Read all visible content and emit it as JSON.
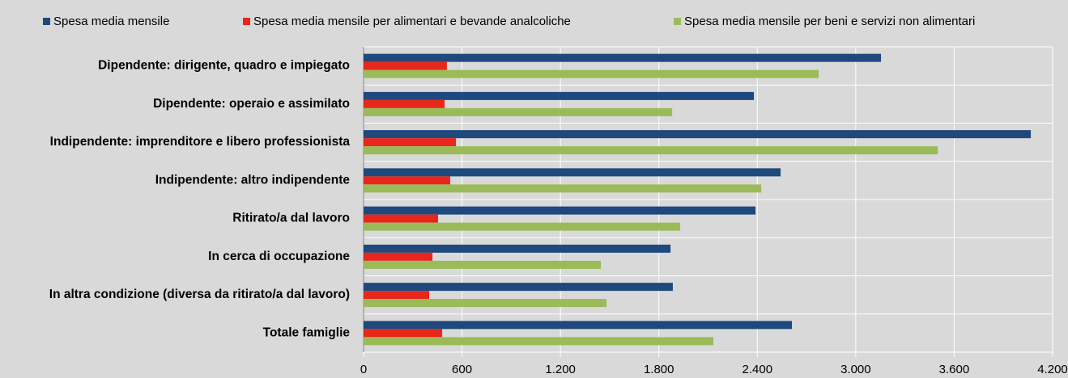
{
  "chart_data": {
    "type": "barh",
    "categories": [
      "Dipendente: dirigente, quadro e impiegato",
      "Dipendente: operaio e assimilato",
      "Indipendente: imprenditore e libero professionista",
      "Indipendente: altro indipendente",
      "Ritirato/a dal lavoro",
      "In cerca di occupazione",
      "In altra condizione (diversa da ritirato/a dal lavoro)",
      "Totale famiglie"
    ],
    "series": [
      {
        "name": "Spesa media mensile",
        "color": "#1f497d",
        "values": [
          3154,
          2379,
          4067,
          2542,
          2389,
          1871,
          1885,
          2611
        ]
      },
      {
        "name": "Spesa media mensile per alimentari e bevande analcoliche",
        "color": "#e8261c",
        "values": [
          508,
          494,
          563,
          528,
          454,
          420,
          400,
          479
        ]
      },
      {
        "name": "Spesa media mensile per beni e servizi non alimentari",
        "color": "#9bbb59",
        "values": [
          2774,
          1881,
          3500,
          2424,
          1930,
          1446,
          1481,
          2132
        ]
      }
    ],
    "xlim": [
      0,
      4200
    ],
    "xticks": [
      0,
      600,
      {
        "value": 1200,
        "label": "1.200"
      },
      {
        "value": 1800,
        "label": "1.800"
      },
      {
        "value": 2400,
        "label": "2.400"
      },
      {
        "value": 3000,
        "label": "3.000"
      },
      {
        "value": 3600,
        "label": "3.600"
      },
      {
        "value": 4200,
        "label": "4.200"
      }
    ],
    "grid": true,
    "legend": "top"
  }
}
